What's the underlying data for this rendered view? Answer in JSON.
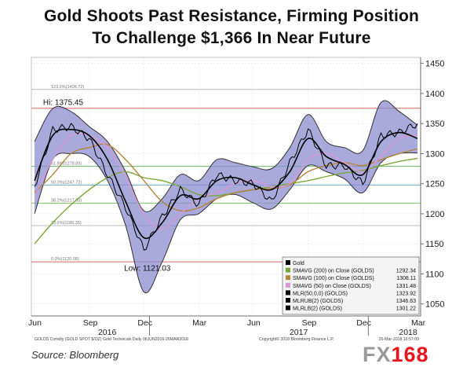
{
  "header": {
    "title_line1": "Gold Shoots Past Resistance, Firming Position",
    "title_line2": "To Challenge $1,366 In Near Future"
  },
  "footer": {
    "source": "Source: Bloomberg",
    "logo_fx": "FX",
    "logo_num": "168"
  },
  "chart_data": {
    "type": "line",
    "title": "",
    "ylim": [
      1030,
      1460
    ],
    "y_ticks": [
      1050,
      1100,
      1150,
      1200,
      1250,
      1300,
      1350,
      1400,
      1450
    ],
    "x_tick_labels": [
      "Jun",
      "Sep",
      "Dec",
      "Mar",
      "Jun",
      "Sep",
      "Dec",
      "Mar"
    ],
    "x_year_labels": [
      "2016",
      "2017",
      "2018"
    ],
    "grid": true,
    "legend_position": "bottom-right",
    "annotations": {
      "high": "Hi: 1375.45",
      "low": "Low: 1121.03"
    },
    "info_left": "GOLDS Comdty  (GOLD SPOT $/OZ)  Gold Technicals  Daily 06JUN2016-26MAR2018",
    "info_right": "Copyright© 2018 Bloomberg Finance L.P.",
    "info_date": "26-Mar-2018 16:57:09",
    "fib_levels": [
      {
        "label": "123.6%(1406.72)",
        "value": 1406.72,
        "color": "#bbbbbb"
      },
      {
        "label": "HI",
        "value": 1375.45,
        "color": "#e06666"
      },
      {
        "label": "61.8%(1278.89)",
        "value": 1278.89,
        "color": "#66bb66"
      },
      {
        "label": "50.0%(1247.72)",
        "value": 1247.72,
        "color": "#66aadd"
      },
      {
        "label": "38.2%(1217.60)",
        "value": 1217.6,
        "color": "#88cc66"
      },
      {
        "label": "23.6%(1180.35)",
        "value": 1180.35,
        "color": "#bbbbbb"
      },
      {
        "label": "0.0%(1120.08)",
        "value": 1120.08,
        "color": "#e06666"
      }
    ],
    "legend": [
      {
        "name": "Gold",
        "value": "",
        "color": "#000000"
      },
      {
        "name": "SMAVG (200) on Close (GOLDS)",
        "value": "1292.34",
        "color": "#7aa83a"
      },
      {
        "name": "SMAVG (100) on Close (GOLDS)",
        "value": "1308.11",
        "color": "#b5863c"
      },
      {
        "name": "SMAVG (50) on Close (GOLDS)",
        "value": "1331.48",
        "color": "#d89ad8"
      },
      {
        "name": "MLR(50,0,0) (GOLDS)",
        "value": "1323.92",
        "color": "#000000"
      },
      {
        "name": "MLRUB(2) (GOLDS)",
        "value": "1346.63",
        "color": "#000000"
      },
      {
        "name": "MLRLB(2) (GOLDS)",
        "value": "1301.22",
        "color": "#000000"
      }
    ],
    "x": [
      "2016-06",
      "2016-07",
      "2016-08",
      "2016-09",
      "2016-10",
      "2016-11",
      "2016-12",
      "2017-01",
      "2017-02",
      "2017-03",
      "2017-04",
      "2017-05",
      "2017-06",
      "2017-07",
      "2017-08",
      "2017-09",
      "2017-10",
      "2017-11",
      "2017-12",
      "2018-01",
      "2018-02",
      "2018-03"
    ],
    "series": [
      {
        "name": "Gold",
        "color": "#000000",
        "values": [
          1245,
          1340,
          1345,
          1325,
          1265,
          1210,
          1140,
          1195,
          1240,
          1215,
          1265,
          1255,
          1250,
          1220,
          1285,
          1340,
          1280,
          1280,
          1250,
          1330,
          1335,
          1350
        ]
      },
      {
        "name": "MLR(50,0,0) (GOLDS)",
        "color": "#000000",
        "values": [
          1255,
          1330,
          1340,
          1330,
          1290,
          1220,
          1160,
          1185,
          1230,
          1225,
          1255,
          1260,
          1248,
          1240,
          1270,
          1325,
          1295,
          1282,
          1265,
          1320,
          1335,
          1325
        ]
      },
      {
        "name": "MLRUB(2) (GOLDS)",
        "color": "#000000",
        "values": [
          1320,
          1375,
          1370,
          1345,
          1320,
          1270,
          1205,
          1225,
          1265,
          1255,
          1290,
          1285,
          1278,
          1275,
          1310,
          1365,
          1320,
          1310,
          1305,
          1385,
          1370,
          1347
        ]
      },
      {
        "name": "MLRLB(2) (GOLDS)",
        "color": "#000000",
        "values": [
          1200,
          1290,
          1300,
          1295,
          1255,
          1180,
          1070,
          1120,
          1190,
          1200,
          1225,
          1232,
          1218,
          1208,
          1240,
          1280,
          1270,
          1258,
          1235,
          1285,
          1300,
          1301
        ]
      },
      {
        "name": "SMAVG (50) on Close (GOLDS)",
        "color": "#d89ad8",
        "values": [
          1230,
          1290,
          1330,
          1330,
          1310,
          1260,
          1200,
          1175,
          1200,
          1225,
          1235,
          1250,
          1255,
          1245,
          1250,
          1290,
          1300,
          1285,
          1270,
          1295,
          1325,
          1331
        ]
      },
      {
        "name": "SMAVG (100) on Close (GOLDS)",
        "color": "#b5863c",
        "values": [
          1235,
          1265,
          1300,
          1310,
          1315,
          1290,
          1255,
          1220,
          1205,
          1210,
          1225,
          1235,
          1240,
          1242,
          1248,
          1270,
          1280,
          1285,
          1280,
          1290,
          1300,
          1308
        ]
      },
      {
        "name": "SMAVG (200) on Close (GOLDS)",
        "color": "#7aa83a",
        "values": [
          1150,
          1185,
          1215,
          1240,
          1260,
          1270,
          1260,
          1255,
          1245,
          1232,
          1230,
          1235,
          1240,
          1245,
          1250,
          1255,
          1262,
          1268,
          1272,
          1280,
          1287,
          1292
        ]
      }
    ]
  }
}
